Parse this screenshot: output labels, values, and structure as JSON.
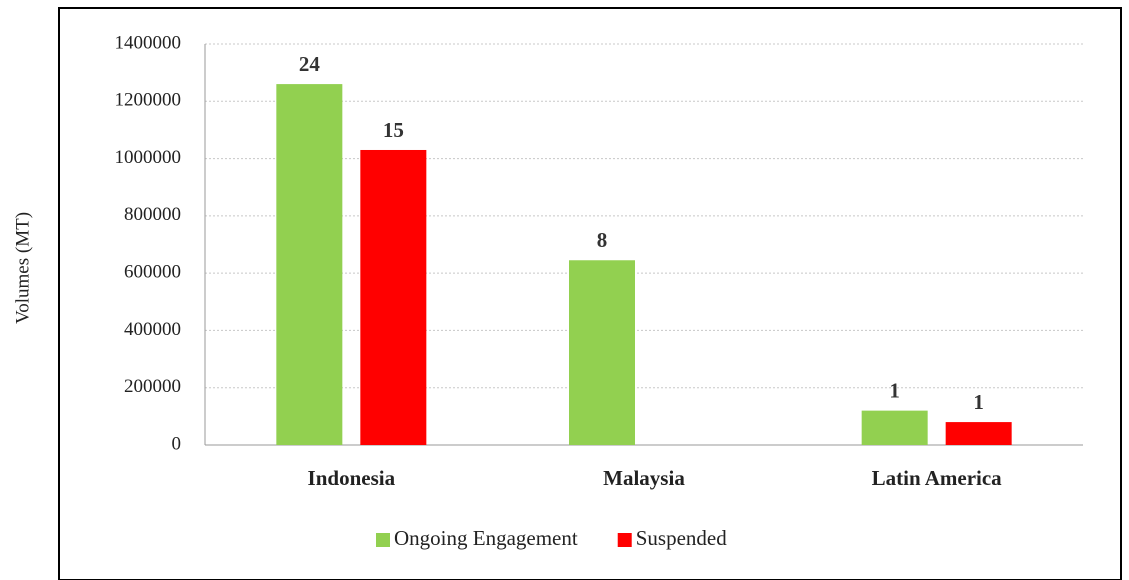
{
  "chart_data": {
    "type": "bar",
    "ylabel": "Volumes (MT)",
    "categories": [
      "Indonesia",
      "Malaysia",
      "Latin America"
    ],
    "series": [
      {
        "name": "Ongoing Engagement",
        "color": "#92d050",
        "values": [
          1260000,
          645000,
          120000
        ],
        "bar_labels": [
          24,
          8,
          1
        ]
      },
      {
        "name": "Suspended",
        "color": "#ff0000",
        "values": [
          1030000,
          null,
          80000
        ],
        "bar_labels": [
          15,
          null,
          1
        ]
      }
    ],
    "ylim": [
      0,
      1400000
    ],
    "yticks": [
      0,
      200000,
      400000,
      600000,
      800000,
      1000000,
      1200000,
      1400000
    ],
    "grid": true,
    "legend": "bottom"
  }
}
